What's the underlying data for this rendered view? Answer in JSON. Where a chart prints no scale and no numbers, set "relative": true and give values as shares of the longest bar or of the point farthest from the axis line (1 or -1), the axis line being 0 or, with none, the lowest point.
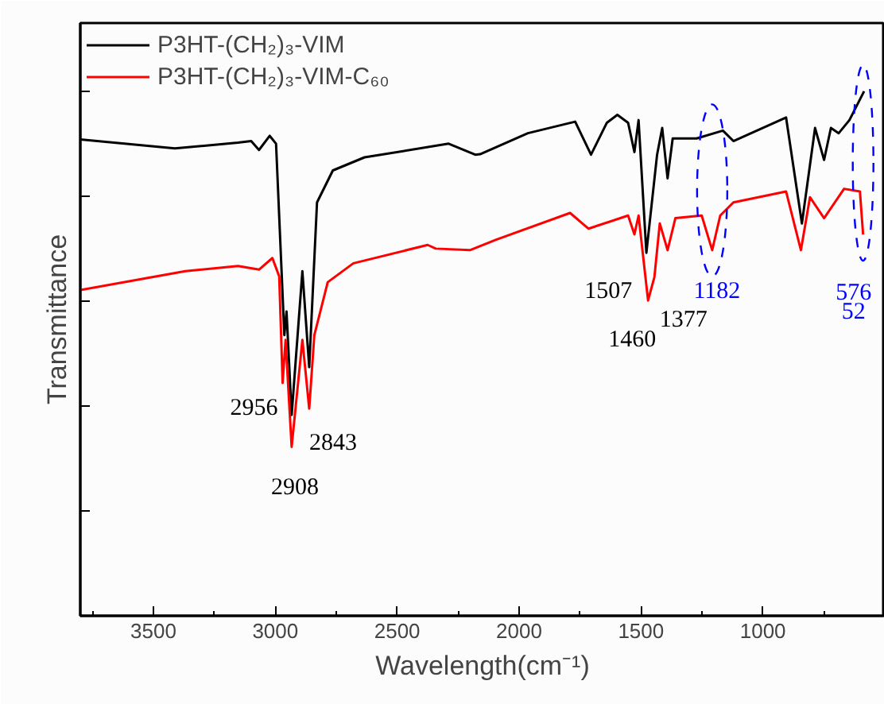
{
  "chart_data": {
    "type": "line",
    "relative": true,
    "xlabel": "Wavelength(cm⁻¹)",
    "ylabel": "Transmittance",
    "xlim": [
      3800,
      500
    ],
    "xticks": [
      3500,
      3000,
      2500,
      2000,
      1500,
      1000
    ],
    "legend": "top left",
    "grid": false,
    "series": [
      {
        "name": "P3HT-(CH₂)₃-VIM",
        "color": "#000000",
        "x": [
          3800,
          3412,
          3153,
          3099,
          3067,
          3023,
          2997,
          2963,
          2954,
          2933,
          2889,
          2861,
          2829,
          2764,
          2634,
          2289,
          2180,
          2160,
          1964,
          1770,
          1705,
          1640,
          1597,
          1553,
          1527,
          1510,
          1478,
          1434,
          1413,
          1391,
          1370,
          1272,
          1164,
          1121,
          905,
          840,
          786,
          749,
          721,
          689,
          645,
          585
        ],
        "values": [
          0.908,
          0.891,
          0.902,
          0.905,
          0.888,
          0.915,
          0.9,
          0.535,
          0.58,
          0.383,
          0.657,
          0.474,
          0.788,
          0.849,
          0.874,
          0.9,
          0.879,
          0.88,
          0.92,
          0.942,
          0.879,
          0.94,
          0.955,
          0.94,
          0.884,
          0.945,
          0.692,
          0.879,
          0.93,
          0.834,
          0.91,
          0.91,
          0.925,
          0.905,
          0.95,
          0.748,
          0.93,
          0.869,
          0.93,
          0.92,
          0.945,
          1.0
        ]
      },
      {
        "name": "P3HT-(CH₂)₃-VIM-C₆₀",
        "color": "#ff0000",
        "x": [
          3800,
          3369,
          3153,
          3067,
          3012,
          2984,
          2970,
          2958,
          2933,
          2889,
          2861,
          2840,
          2785,
          2680,
          2375,
          2342,
          2202,
          2094,
          1791,
          1715,
          1553,
          1527,
          1510,
          1471,
          1445,
          1423,
          1391,
          1359,
          1251,
          1208,
          1175,
          1121,
          905,
          844,
          807,
          749,
          667,
          602,
          589
        ],
        "values": [
          0.621,
          0.657,
          0.667,
          0.66,
          0.682,
          0.647,
          0.444,
          0.526,
          0.322,
          0.526,
          0.395,
          0.535,
          0.636,
          0.672,
          0.707,
          0.7,
          0.697,
          0.717,
          0.768,
          0.738,
          0.763,
          0.727,
          0.763,
          0.601,
          0.646,
          0.748,
          0.697,
          0.758,
          0.763,
          0.697,
          0.763,
          0.788,
          0.809,
          0.697,
          0.798,
          0.758,
          0.814,
          0.809,
          0.727
        ]
      }
    ],
    "annotations": [
      {
        "text": "2956",
        "x": 2970,
        "y": 0.444
      },
      {
        "text": "2908",
        "x": 2933,
        "y": 0.322
      },
      {
        "text": "2843",
        "x": 2861,
        "y": 0.395
      },
      {
        "text": "1507",
        "x": 1510,
        "y": 0.763
      },
      {
        "text": "1460",
        "x": 1471,
        "y": 0.601
      },
      {
        "text": "1377",
        "x": 1391,
        "y": 0.697
      },
      {
        "text": "1182",
        "x": 1208,
        "y": 0.697
      },
      {
        "text": "576",
        "x": 589,
        "y": 0.727
      },
      {
        "text": "52",
        "x": 589,
        "y": 0.727
      }
    ]
  }
}
